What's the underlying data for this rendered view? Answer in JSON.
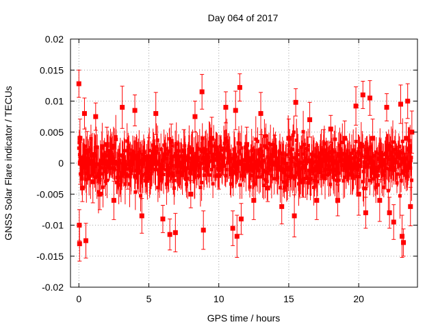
{
  "chart_data": {
    "type": "scatter",
    "title": "Day 064 of 2017",
    "xlabel": "GPS time / hours",
    "ylabel": "GNSS Solar Flare indicator / TECUs",
    "xlim": [
      -0.6,
      24.2
    ],
    "ylim": [
      -0.02,
      0.02
    ],
    "xticks": [
      0,
      5,
      10,
      15,
      20
    ],
    "xtick_labels": [
      "0",
      "5",
      "10",
      "15",
      "20"
    ],
    "yticks": [
      -0.02,
      -0.015,
      -0.01,
      -0.005,
      0,
      0.005,
      0.01,
      0.015,
      0.02
    ],
    "ytick_labels": [
      "-0.02",
      "-0.015",
      "-0.01",
      "-0.005",
      "0",
      "0.005",
      "0.01",
      "0.015",
      "0.02"
    ],
    "grid": true,
    "marker": "filled-square",
    "error_bars": true,
    "color": "#ff0000",
    "series": [
      {
        "x": [
          0.0,
          0.03,
          0.05,
          0.08,
          0.1,
          0.25,
          0.4,
          0.5,
          0.6,
          1.0,
          1.2,
          1.5,
          2.0,
          2.5,
          3.1,
          3.5,
          4.0,
          4.5,
          5.0,
          5.5,
          6.0,
          6.5,
          6.6,
          6.9,
          7.5,
          8.0,
          8.3,
          8.8,
          8.9,
          9.5,
          10.0,
          10.5,
          11.0,
          11.2,
          11.3,
          11.5,
          11.6,
          12.0,
          12.5,
          13.0,
          13.5,
          14.0,
          14.5,
          15.0,
          15.4,
          15.5,
          16.0,
          16.5,
          17.0,
          17.5,
          18.0,
          18.5,
          19.0,
          19.8,
          20.0,
          20.3,
          20.5,
          20.8,
          21.0,
          21.5,
          22.0,
          22.2,
          22.5,
          23.0,
          23.1,
          23.2,
          23.4,
          23.5,
          23.7,
          23.8
        ],
        "y": [
          0.0128,
          -0.01,
          -0.013,
          0.004,
          0.0,
          -0.004,
          0.008,
          -0.0125,
          0.002,
          -0.003,
          0.0075,
          -0.005,
          0.003,
          -0.006,
          0.009,
          -0.002,
          0.0085,
          -0.0085,
          0.001,
          0.008,
          -0.009,
          -0.0115,
          0.0035,
          -0.0112,
          0.002,
          -0.005,
          0.0075,
          0.0115,
          -0.0108,
          0.004,
          -0.002,
          0.009,
          -0.0105,
          0.0085,
          -0.0118,
          0.0122,
          -0.009,
          0.003,
          -0.006,
          0.008,
          -0.004,
          0.002,
          -0.007,
          0.004,
          -0.0085,
          0.0098,
          -0.003,
          0.007,
          -0.006,
          0.002,
          0.0055,
          -0.006,
          0.004,
          0.0092,
          -0.005,
          0.011,
          -0.008,
          0.0105,
          0.004,
          -0.006,
          0.009,
          -0.008,
          -0.0095,
          0.0095,
          -0.0118,
          -0.0128,
          0.004,
          0.01,
          -0.007,
          0.005
        ]
      }
    ]
  }
}
